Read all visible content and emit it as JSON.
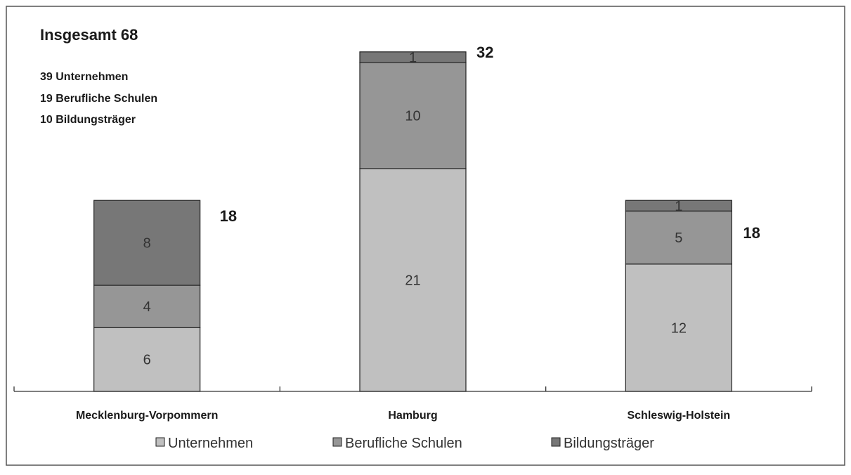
{
  "summary": {
    "title": "Insgesamt 68",
    "lines": [
      "39 Unternehmen",
      "19 Berufliche Schulen",
      "10 Bildungsträger"
    ]
  },
  "chart_data": {
    "type": "bar",
    "stacked": true,
    "categories": [
      "Mecklenburg-Vorpommern",
      "Hamburg",
      "Schleswig-Holstein"
    ],
    "series": [
      {
        "name": "Unternehmen",
        "values": [
          6,
          21,
          12
        ],
        "color": "#c0c0c0"
      },
      {
        "name": "Berufliche Schulen",
        "values": [
          4,
          10,
          5
        ],
        "color": "#969696"
      },
      {
        "name": "Bildungsträger",
        "values": [
          8,
          1,
          1
        ],
        "color": "#777777"
      }
    ],
    "totals": [
      18,
      32,
      18
    ],
    "legend_position": "bottom",
    "grid": false
  }
}
